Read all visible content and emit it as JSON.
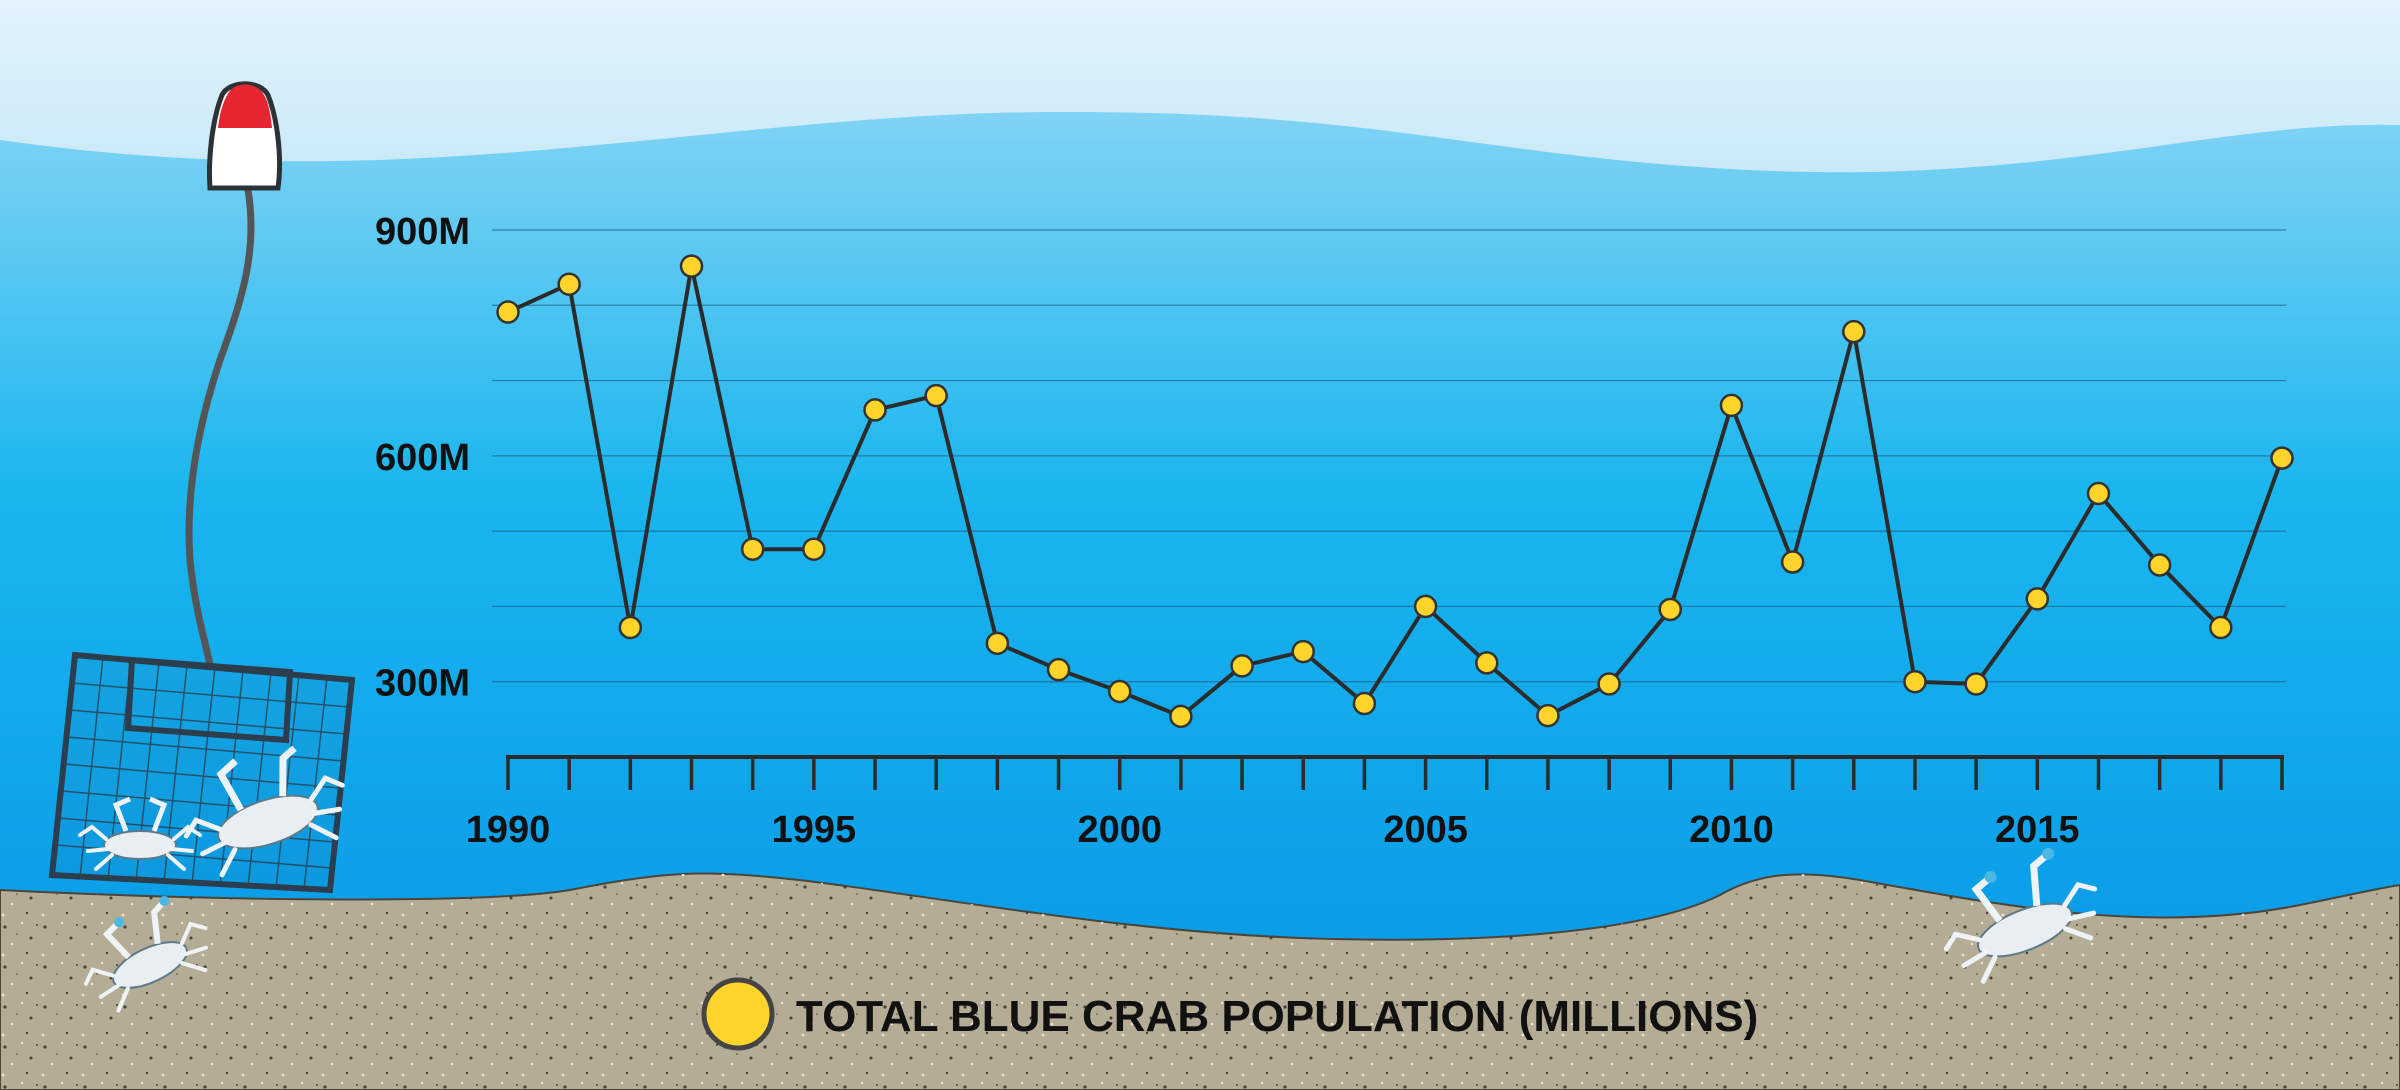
{
  "chart_data": {
    "type": "line",
    "title": "",
    "xlabel": "",
    "ylabel": "",
    "legend": {
      "label": "TOTAL BLUE CRAB POPULATION (MILLIONS)",
      "marker_color": "#fdd52a"
    },
    "x": [
      1990,
      1991,
      1992,
      1993,
      1994,
      1995,
      1996,
      1997,
      1998,
      1999,
      2000,
      2001,
      2002,
      2003,
      2004,
      2005,
      2006,
      2007,
      2008,
      2009,
      2010,
      2011,
      2012,
      2013,
      2014,
      2015,
      2016,
      2017,
      2018,
      2019
    ],
    "series": [
      {
        "name": "TOTAL BLUE CRAB POPULATION (MILLIONS)",
        "values": [
          791,
          828,
          372,
          852,
          476,
          476,
          661,
          680,
          351,
          316,
          287,
          254,
          321,
          340,
          271,
          400,
          325,
          255,
          297,
          396,
          667,
          459,
          765,
          300,
          297,
          410,
          550,
          455,
          372,
          597
        ]
      }
    ],
    "xlim": [
      1990,
      2019
    ],
    "ylim": [
      200,
      900
    ],
    "x_tick_labels": [
      "1990",
      "1995",
      "2000",
      "2005",
      "2010",
      "2015"
    ],
    "x_tick_values": [
      1990,
      1995,
      2000,
      2005,
      2010,
      2015
    ],
    "y_tick_labels": [
      "900M",
      "600M",
      "300M"
    ],
    "y_tick_values": [
      900,
      600,
      300
    ],
    "gridlines": [
      900,
      800,
      700,
      600,
      500,
      400,
      300
    ],
    "colors": {
      "line": "#2b2b2b",
      "marker": "#fdd52a",
      "grid": "#1f5f86",
      "sand": "#b5ac96"
    }
  }
}
